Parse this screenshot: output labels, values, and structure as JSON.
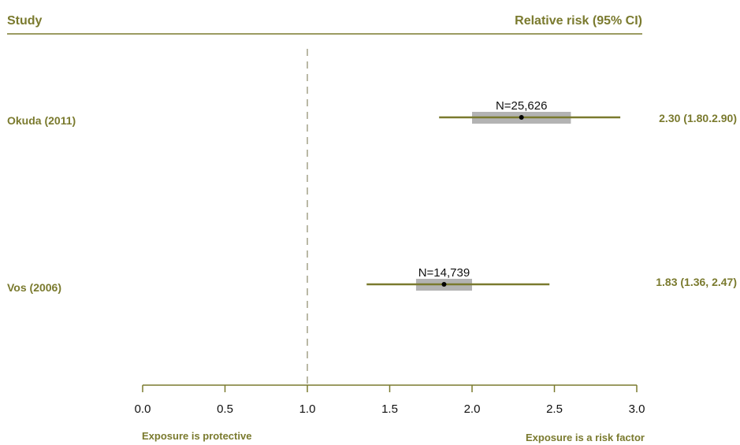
{
  "chart_data": {
    "type": "forest",
    "headers": {
      "left": "Study",
      "right": "Relative risk (95% CI)"
    },
    "reference_line": 1.0,
    "xlim": [
      0.0,
      3.0
    ],
    "xticks": [
      "0.0",
      "0.5",
      "1.0",
      "1.5",
      "2.0",
      "2.5",
      "3.0"
    ],
    "xtick_values": [
      0.0,
      0.5,
      1.0,
      1.5,
      2.0,
      2.5,
      3.0
    ],
    "left_annotation": "Exposure is protective",
    "right_annotation": "Exposure is a risk factor",
    "studies": [
      {
        "name": "Okuda (2011)",
        "estimate": 2.3,
        "ci_low": 1.8,
        "ci_high": 2.9,
        "box_low": 2.0,
        "box_high": 2.6,
        "n_label": "N=25,626",
        "ci_text": "2.30 (1.80.2.90)"
      },
      {
        "name": "Vos (2006)",
        "estimate": 1.83,
        "ci_low": 1.36,
        "ci_high": 2.47,
        "box_low": 1.66,
        "box_high": 2.0,
        "n_label": "N=14,739",
        "ci_text": "1.83 (1.36, 2.47)"
      }
    ],
    "colors": {
      "accent": "#7a7a2e",
      "box": "#b3b3b3",
      "point": "#000000",
      "refline": "#8c8a6a"
    }
  }
}
